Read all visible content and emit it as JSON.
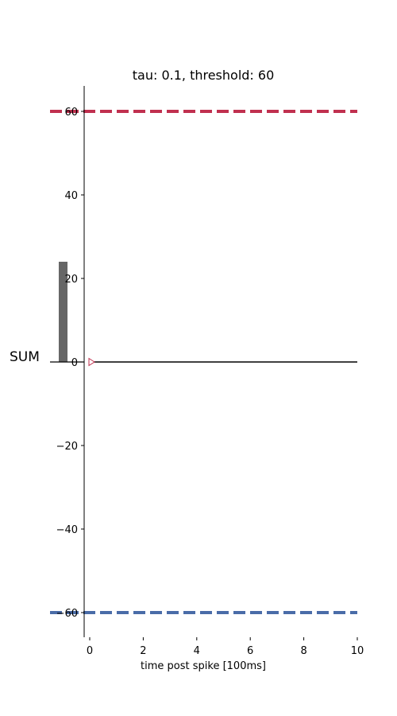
{
  "chart_data": {
    "type": "line",
    "title": "tau: 0.1, threshold: 60",
    "xlabel": "time post spike [100ms]",
    "ylabel": "SUM",
    "xlim": [
      -0.2,
      10
    ],
    "ylim": [
      -66,
      66
    ],
    "xticks": [
      0,
      2,
      4,
      6,
      8,
      10
    ],
    "yticks": [
      -60,
      -40,
      -20,
      0,
      20,
      40,
      60
    ],
    "grid": false,
    "series": [
      {
        "x": [
          0,
          0.1,
          10
        ],
        "y": [
          0,
          0,
          0
        ],
        "color": "#000000",
        "marker_at_start": "triangle-right",
        "marker_color": "#c0304f"
      }
    ],
    "sum_bar": {
      "value": 24,
      "color": "#666666"
    },
    "reference_lines": [
      {
        "y": 60,
        "style": "dashed",
        "color": "#c0304f"
      },
      {
        "y": -60,
        "style": "dashed",
        "color": "#4a6ca8"
      }
    ]
  }
}
